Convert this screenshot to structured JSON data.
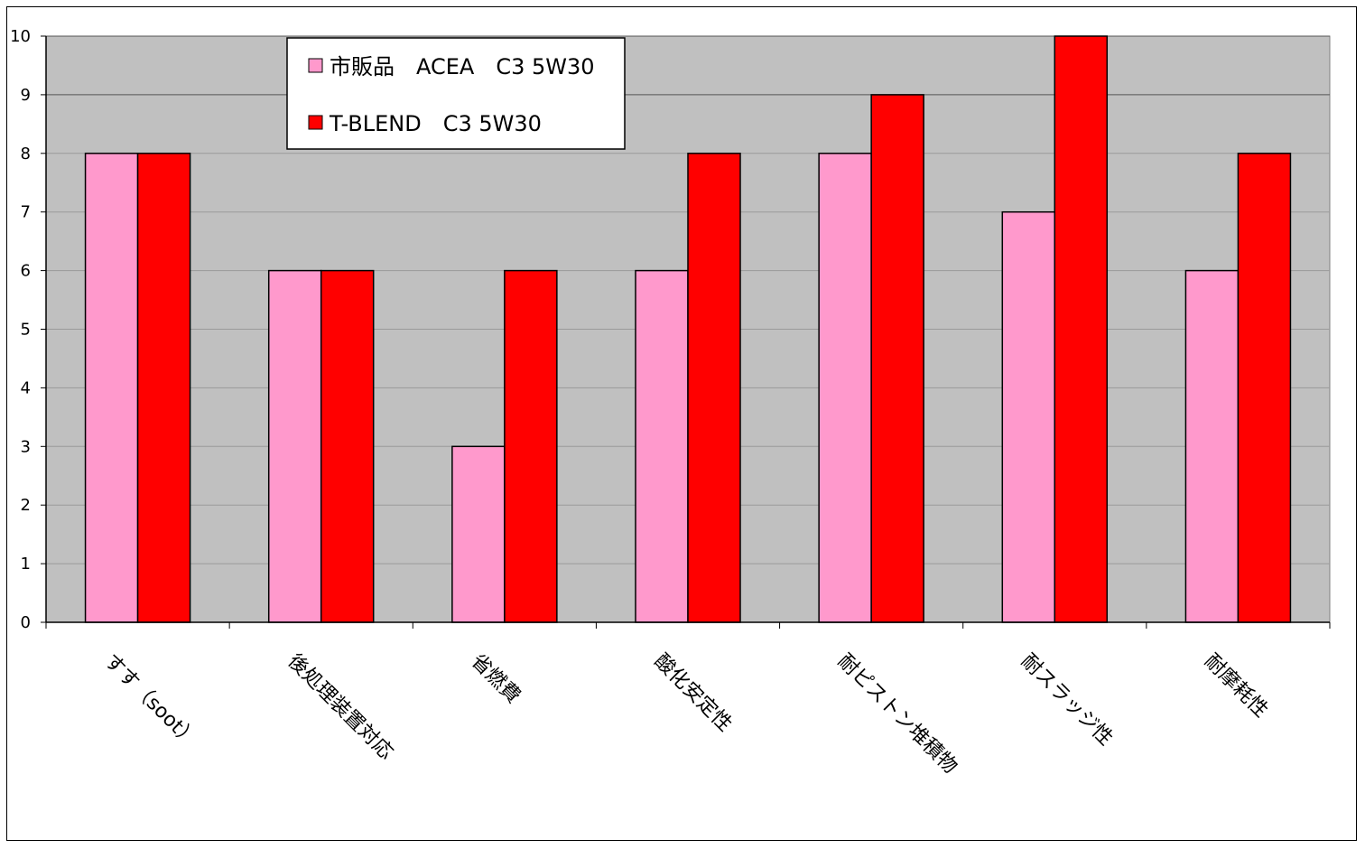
{
  "chart_data": {
    "type": "bar",
    "categories": [
      "すす（soot）",
      "後処理装置対応",
      "省燃費",
      "酸化安定性",
      "耐ピストン堆積物",
      "耐スラッジ性",
      "耐摩耗性"
    ],
    "series": [
      {
        "name": "市販品　ACEA　C3 5W30",
        "values": [
          8,
          6,
          3,
          6,
          8,
          7,
          6
        ],
        "color": "#ff99cc"
      },
      {
        "name": "T-BLEND　C3 5W30",
        "values": [
          8,
          6,
          6,
          8,
          9,
          10,
          8
        ],
        "color": "#ff0000"
      }
    ],
    "ylim": [
      0,
      10
    ],
    "yticks": [
      "0",
      "1",
      "2",
      "3",
      "4",
      "5",
      "6",
      "7",
      "8",
      "9",
      "10"
    ],
    "grid": true,
    "legend_position": "top-left",
    "plot_background": "#c0c0c0",
    "title": "",
    "xlabel": "",
    "ylabel": ""
  }
}
